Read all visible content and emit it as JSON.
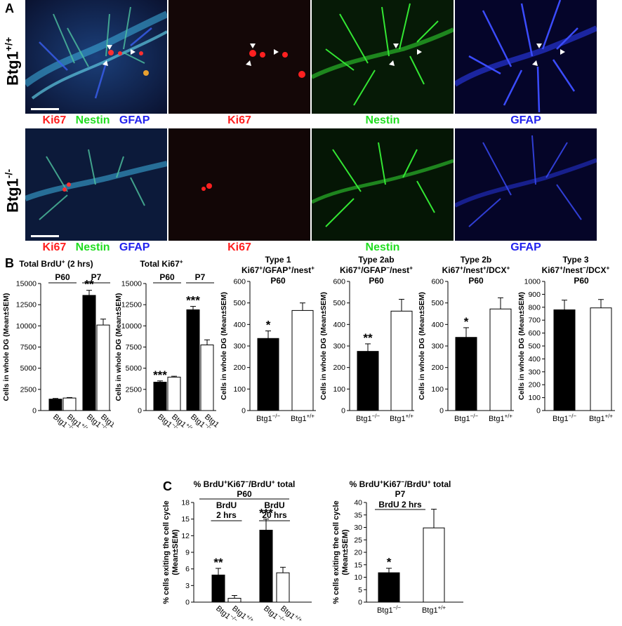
{
  "panel_a": {
    "letter": "A",
    "rows": [
      {
        "genotype_base": "Btg1",
        "genotype_sup": "+/+"
      },
      {
        "genotype_base": "Btg1",
        "genotype_sup": "-/-"
      }
    ],
    "captions": {
      "merge": [
        "Ki67",
        "Nestin",
        "GFAP"
      ],
      "ki67": "Ki67",
      "nestin": "Nestin",
      "gfap": "GFAP"
    },
    "colors": {
      "ki67": "#ff2020",
      "nestin": "#22dd22",
      "gfap": "#2222ee"
    }
  },
  "panel_b": {
    "letter": "B"
  },
  "panel_c": {
    "letter": "C"
  },
  "chart_data": [
    {
      "id": "b1",
      "type": "bar",
      "title": "Total BrdU+ (2 hrs)",
      "ylabel": "Cells in whole DG (Mean±SEM)",
      "ylim": [
        0,
        15000
      ],
      "yticks": [
        0,
        2500,
        5000,
        7500,
        10000,
        12500,
        15000
      ],
      "groups": [
        "P60",
        "P7"
      ],
      "categories": [
        "Btg1-/-",
        "Btg1+/+",
        "Btg1-/-",
        "Btg1+/+"
      ],
      "values": [
        1350,
        1480,
        13600,
        10100
      ],
      "errors": [
        80,
        60,
        600,
        700
      ],
      "fills": [
        "#000000",
        "#ffffff",
        "#000000",
        "#ffffff"
      ],
      "annotations": [
        {
          "index": 2,
          "text": "**"
        }
      ]
    },
    {
      "id": "b2",
      "type": "bar",
      "title": "Total Ki67+",
      "ylabel": "Cells in whole DG (Mean±SEM)",
      "ylim": [
        0,
        15000
      ],
      "yticks": [
        0,
        2500,
        5000,
        7500,
        10000,
        12500,
        15000
      ],
      "groups": [
        "P60",
        "P7"
      ],
      "categories": [
        "Btg1-/-",
        "Btg1+/+",
        "Btg1-/-",
        "Btg1+/+"
      ],
      "values": [
        3350,
        3950,
        11900,
        7750
      ],
      "errors": [
        150,
        100,
        400,
        600
      ],
      "fills": [
        "#000000",
        "#ffffff",
        "#000000",
        "#ffffff"
      ],
      "annotations": [
        {
          "index": 0,
          "text": "***"
        },
        {
          "index": 2,
          "text": "***"
        }
      ]
    },
    {
      "id": "b3",
      "type": "bar",
      "title": [
        "Type 1",
        "Ki67+/GFAP+/nest+"
      ],
      "subtitle": "P60",
      "ylabel": "Cells in whole DG (Mean±SEM)",
      "ylim": [
        0,
        600
      ],
      "yticks": [
        0,
        100,
        200,
        300,
        400,
        500,
        600
      ],
      "categories": [
        "Btg1-/-",
        "Btg1+/+"
      ],
      "values": [
        335,
        465
      ],
      "errors": [
        35,
        35
      ],
      "fills": [
        "#000000",
        "#ffffff"
      ],
      "annotations": [
        {
          "index": 0,
          "text": "*"
        }
      ]
    },
    {
      "id": "b4",
      "type": "bar",
      "title": [
        "Type 2ab",
        "Ki67+/GFAP-/nest+"
      ],
      "subtitle": "P60",
      "ylabel": "Cells in whole DG (Mean±SEM)",
      "ylim": [
        0,
        600
      ],
      "yticks": [
        0,
        100,
        200,
        300,
        400,
        500,
        600
      ],
      "categories": [
        "Btg1-/-",
        "Btg1+/+"
      ],
      "values": [
        275,
        462
      ],
      "errors": [
        35,
        55
      ],
      "fills": [
        "#000000",
        "#ffffff"
      ],
      "annotations": [
        {
          "index": 0,
          "text": "**"
        }
      ]
    },
    {
      "id": "b5",
      "type": "bar",
      "title": [
        "Type 2b",
        "Ki67+/nest+/DCX+"
      ],
      "subtitle": "P60",
      "ylabel": "Cells in whole DG (Mean±SEM)",
      "ylim": [
        0,
        600
      ],
      "yticks": [
        0,
        100,
        200,
        300,
        400,
        500,
        600
      ],
      "categories": [
        "Btg1-/-",
        "Btg1+/+"
      ],
      "values": [
        340,
        472
      ],
      "errors": [
        45,
        52
      ],
      "fills": [
        "#000000",
        "#ffffff"
      ],
      "annotations": [
        {
          "index": 0,
          "text": "*"
        }
      ]
    },
    {
      "id": "b6",
      "type": "bar",
      "title": [
        "Type 3",
        "Ki67+/nest-/DCX+"
      ],
      "subtitle": "P60",
      "ylabel": "Cells in whole DG (Mean±SEM)",
      "ylim": [
        0,
        1000
      ],
      "yticks": [
        0,
        100,
        200,
        300,
        400,
        500,
        600,
        700,
        800,
        900,
        1000
      ],
      "categories": [
        "Btg1-/-",
        "Btg1+/+"
      ],
      "values": [
        780,
        795
      ],
      "errors": [
        75,
        65
      ],
      "fills": [
        "#000000",
        "#ffffff"
      ],
      "annotations": []
    },
    {
      "id": "c1",
      "type": "bar",
      "title": "% BrdU+Ki67-/BrdU+ total",
      "subtitle": "P60",
      "ylabel": "% cells exiting the cell cycle (Mean±SEM)",
      "ylim": [
        0,
        18
      ],
      "yticks": [
        0,
        3,
        6,
        9,
        12,
        15,
        18
      ],
      "groups": [
        "BrdU 2 hrs",
        "BrdU 20 hrs"
      ],
      "categories": [
        "Btg1-/-",
        "Btg1+/+",
        "Btg1-/-",
        "Btg1+/+"
      ],
      "values": [
        4.9,
        0.7,
        13.0,
        5.3
      ],
      "errors": [
        1.2,
        0.5,
        2.0,
        1.0
      ],
      "fills": [
        "#000000",
        "#ffffff",
        "#000000",
        "#ffffff"
      ],
      "annotations": [
        {
          "index": 0,
          "text": "**"
        },
        {
          "index": 2,
          "text": "***"
        }
      ]
    },
    {
      "id": "c2",
      "type": "bar",
      "title": "% BrdU+Ki67-/BrdU+ total",
      "subtitle": [
        "P7",
        "BrdU 2 hrs"
      ],
      "ylabel": "% cells exiting the cell cycle (Mean±SEM)",
      "ylim": [
        0,
        40
      ],
      "yticks": [
        0,
        5,
        10,
        15,
        20,
        25,
        30,
        35,
        40
      ],
      "categories": [
        "Btg1-/-",
        "Btg1+/+"
      ],
      "values": [
        11.8,
        29.8
      ],
      "errors": [
        1.8,
        7.5
      ],
      "fills": [
        "#000000",
        "#ffffff"
      ],
      "annotations": [
        {
          "index": 0,
          "text": "*"
        }
      ]
    }
  ]
}
